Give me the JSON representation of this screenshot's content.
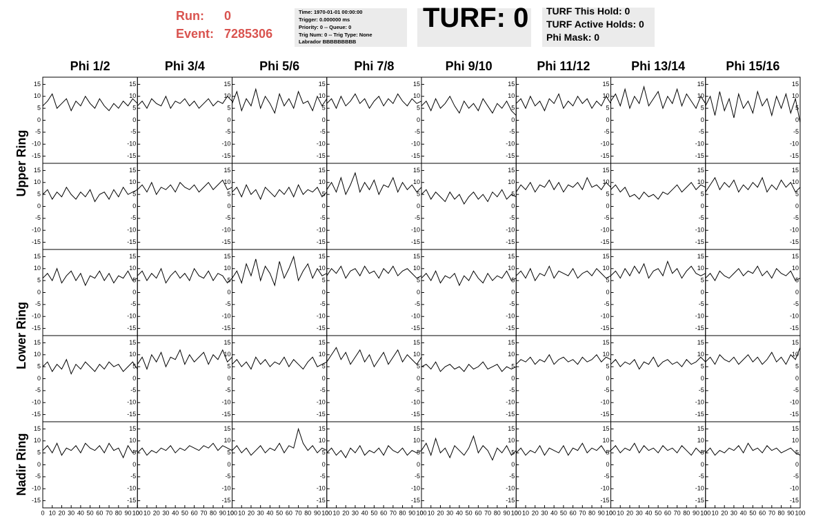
{
  "header": {
    "run_label": "Run:",
    "run": 0,
    "event_label": "Event:",
    "event": 7285306,
    "info": [
      "Time: 1970-01-01 00:00:00",
      "Trigger: 0.000000 ms",
      "Priority: 0 -- Queue: 0",
      "Trig Num: 0 -- Trig Type: None",
      "Labrador BBBBBBBBB"
    ],
    "turf_label": "TURF:",
    "turf": 0,
    "turf_stats": [
      {
        "label": "TURF This Hold:",
        "value": 0
      },
      {
        "label": "TURF Active Holds:",
        "value": 0
      },
      {
        "label": "Phi Mask:",
        "value": 0
      }
    ]
  },
  "chart_data": {
    "type": "line-grid",
    "columns": [
      "Phi 1/2",
      "Phi 3/4",
      "Phi 5/6",
      "Phi 7/8",
      "Phi 9/10",
      "Phi 11/12",
      "Phi 13/14",
      "Phi 15/16"
    ],
    "ring_labels": [
      "Upper Ring",
      "Lower Ring",
      "Nadir Ring"
    ],
    "color": "#000000",
    "xlim": [
      0,
      100
    ],
    "xticks": [
      0,
      10,
      20,
      30,
      40,
      50,
      60,
      70,
      80,
      90,
      100
    ],
    "ylim": [
      -18,
      18
    ],
    "yticks": [
      -15,
      -10,
      -5,
      0,
      5,
      10,
      15
    ],
    "x": [
      0,
      5,
      10,
      15,
      20,
      25,
      30,
      35,
      40,
      45,
      50,
      55,
      60,
      65,
      70,
      75,
      80,
      85,
      90,
      95,
      100
    ],
    "panels": [
      [
        [
          6,
          8,
          11,
          5,
          7,
          9,
          4,
          8,
          6,
          10,
          7,
          5,
          9,
          6,
          4,
          7,
          5,
          8,
          6,
          9,
          7
        ],
        [
          6,
          8,
          5,
          9,
          7,
          6,
          10,
          5,
          8,
          7,
          9,
          6,
          8,
          5,
          7,
          9,
          6,
          8,
          7,
          10,
          8
        ],
        [
          7,
          12,
          4,
          9,
          6,
          13,
          5,
          10,
          7,
          3,
          11,
          6,
          9,
          5,
          12,
          7,
          8,
          4,
          10,
          6,
          9
        ],
        [
          7,
          9,
          5,
          10,
          6,
          8,
          11,
          7,
          9,
          5,
          8,
          10,
          6,
          9,
          7,
          11,
          8,
          6,
          9,
          7,
          8
        ],
        [
          6,
          8,
          4,
          9,
          5,
          7,
          10,
          6,
          3,
          8,
          5,
          7,
          4,
          9,
          6,
          3,
          7,
          5,
          8,
          4,
          2
        ],
        [
          7,
          9,
          5,
          10,
          6,
          8,
          4,
          9,
          7,
          11,
          5,
          8,
          6,
          10,
          7,
          9,
          5,
          8,
          6,
          10,
          7
        ],
        [
          8,
          11,
          6,
          13,
          5,
          10,
          7,
          14,
          6,
          9,
          12,
          5,
          10,
          7,
          13,
          6,
          11,
          8,
          5,
          10,
          7
        ],
        [
          6,
          10,
          2,
          12,
          4,
          9,
          1,
          11,
          5,
          8,
          3,
          12,
          6,
          9,
          2,
          10,
          5,
          11,
          3,
          9,
          -1
        ]
      ],
      [
        [
          5,
          7,
          3,
          6,
          4,
          8,
          5,
          3,
          6,
          4,
          7,
          2,
          5,
          6,
          3,
          7,
          4,
          8,
          5,
          6,
          7
        ],
        [
          7,
          9,
          6,
          10,
          5,
          8,
          7,
          9,
          6,
          10,
          8,
          7,
          9,
          6,
          8,
          10,
          7,
          9,
          11,
          7,
          8
        ],
        [
          6,
          8,
          4,
          9,
          5,
          7,
          3,
          8,
          6,
          4,
          7,
          5,
          8,
          4,
          9,
          5,
          7,
          6,
          8,
          4,
          6
        ],
        [
          7,
          10,
          6,
          12,
          5,
          9,
          14,
          6,
          10,
          7,
          11,
          5,
          9,
          8,
          12,
          6,
          10,
          7,
          9,
          6,
          8
        ],
        [
          5,
          7,
          3,
          6,
          4,
          2,
          6,
          3,
          5,
          1,
          4,
          6,
          3,
          5,
          2,
          6,
          4,
          7,
          3,
          5,
          4
        ],
        [
          6,
          9,
          7,
          10,
          6,
          9,
          8,
          11,
          7,
          10,
          6,
          9,
          8,
          10,
          7,
          12,
          8,
          9,
          7,
          10,
          8
        ],
        [
          7,
          9,
          6,
          8,
          4,
          5,
          3,
          6,
          4,
          5,
          3,
          6,
          5,
          7,
          9,
          6,
          8,
          10,
          7,
          9,
          8
        ],
        [
          6,
          9,
          12,
          7,
          10,
          8,
          11,
          6,
          9,
          7,
          10,
          8,
          12,
          6,
          9,
          7,
          11,
          8,
          10,
          6,
          8
        ]
      ],
      [
        [
          6,
          8,
          5,
          10,
          4,
          7,
          9,
          5,
          8,
          3,
          7,
          6,
          9,
          5,
          8,
          4,
          7,
          6,
          9,
          5,
          6
        ],
        [
          7,
          9,
          5,
          8,
          6,
          10,
          4,
          7,
          9,
          6,
          8,
          5,
          10,
          7,
          6,
          9,
          5,
          8,
          7,
          4,
          6
        ],
        [
          6,
          9,
          4,
          12,
          7,
          14,
          5,
          11,
          8,
          3,
          13,
          6,
          10,
          15,
          5,
          9,
          12,
          6,
          10,
          7,
          8
        ],
        [
          7,
          10,
          8,
          11,
          6,
          9,
          10,
          7,
          11,
          8,
          9,
          6,
          10,
          8,
          11,
          7,
          9,
          10,
          8,
          6,
          7
        ],
        [
          6,
          8,
          5,
          9,
          4,
          7,
          6,
          8,
          3,
          7,
          5,
          9,
          6,
          4,
          8,
          5,
          7,
          6,
          9,
          5,
          6
        ],
        [
          7,
          9,
          6,
          10,
          5,
          8,
          7,
          11,
          6,
          9,
          8,
          7,
          10,
          6,
          8,
          9,
          7,
          10,
          8,
          6,
          7
        ],
        [
          7,
          9,
          6,
          10,
          7,
          11,
          8,
          12,
          6,
          9,
          10,
          7,
          13,
          8,
          10,
          6,
          9,
          11,
          8,
          7,
          8
        ],
        [
          6,
          8,
          5,
          9,
          7,
          6,
          8,
          10,
          7,
          9,
          8,
          11,
          7,
          9,
          6,
          10,
          8,
          7,
          9,
          5,
          6
        ]
      ],
      [
        [
          5,
          7,
          3,
          6,
          4,
          8,
          2,
          6,
          4,
          7,
          5,
          3,
          6,
          4,
          7,
          5,
          6,
          3,
          5,
          7,
          4
        ],
        [
          6,
          9,
          4,
          10,
          7,
          11,
          5,
          9,
          8,
          12,
          6,
          10,
          7,
          9,
          11,
          6,
          10,
          8,
          12,
          7,
          9
        ],
        [
          6,
          8,
          5,
          7,
          4,
          9,
          6,
          8,
          5,
          7,
          6,
          9,
          5,
          8,
          6,
          4,
          7,
          9,
          5,
          6,
          7
        ],
        [
          7,
          10,
          13,
          8,
          11,
          6,
          9,
          12,
          7,
          10,
          5,
          8,
          11,
          6,
          9,
          12,
          7,
          10,
          8,
          6,
          9
        ],
        [
          5,
          6,
          4,
          7,
          3,
          5,
          6,
          4,
          5,
          3,
          6,
          4,
          5,
          7,
          4,
          5,
          6,
          3,
          5,
          4,
          5
        ],
        [
          6,
          8,
          7,
          9,
          6,
          8,
          7,
          10,
          6,
          8,
          9,
          7,
          8,
          6,
          9,
          7,
          8,
          10,
          7,
          9,
          8
        ],
        [
          6,
          8,
          5,
          7,
          6,
          8,
          4,
          7,
          6,
          9,
          5,
          7,
          8,
          6,
          7,
          5,
          8,
          6,
          7,
          9,
          7
        ],
        [
          7,
          9,
          6,
          10,
          8,
          7,
          9,
          6,
          8,
          10,
          7,
          9,
          6,
          8,
          11,
          7,
          9,
          6,
          10,
          8,
          13
        ]
      ],
      [
        [
          6,
          8,
          5,
          9,
          4,
          7,
          6,
          8,
          5,
          9,
          7,
          6,
          8,
          5,
          9,
          6,
          7,
          3,
          8,
          5,
          6
        ],
        [
          5,
          7,
          4,
          6,
          5,
          7,
          6,
          8,
          5,
          7,
          6,
          8,
          7,
          6,
          8,
          7,
          9,
          6,
          8,
          7,
          6
        ],
        [
          6,
          8,
          5,
          7,
          4,
          6,
          8,
          5,
          7,
          6,
          9,
          5,
          8,
          7,
          15,
          9,
          6,
          8,
          5,
          7,
          6
        ],
        [
          5,
          7,
          4,
          6,
          3,
          7,
          5,
          8,
          4,
          6,
          5,
          7,
          4,
          8,
          6,
          5,
          7,
          4,
          6,
          5,
          6
        ],
        [
          6,
          9,
          4,
          11,
          5,
          7,
          3,
          8,
          6,
          4,
          7,
          12,
          5,
          8,
          6,
          2,
          7,
          5,
          8,
          4,
          6
        ],
        [
          5,
          7,
          4,
          6,
          5,
          8,
          4,
          7,
          6,
          5,
          8,
          4,
          7,
          6,
          9,
          5,
          7,
          6,
          8,
          5,
          6
        ],
        [
          6,
          8,
          5,
          7,
          6,
          9,
          5,
          8,
          6,
          7,
          5,
          8,
          6,
          7,
          5,
          8,
          6,
          4,
          7,
          5,
          6
        ],
        [
          5,
          7,
          4,
          6,
          5,
          7,
          6,
          8,
          5,
          9,
          6,
          7,
          5,
          8,
          6,
          7,
          5,
          6,
          7,
          5,
          4
        ]
      ]
    ]
  }
}
